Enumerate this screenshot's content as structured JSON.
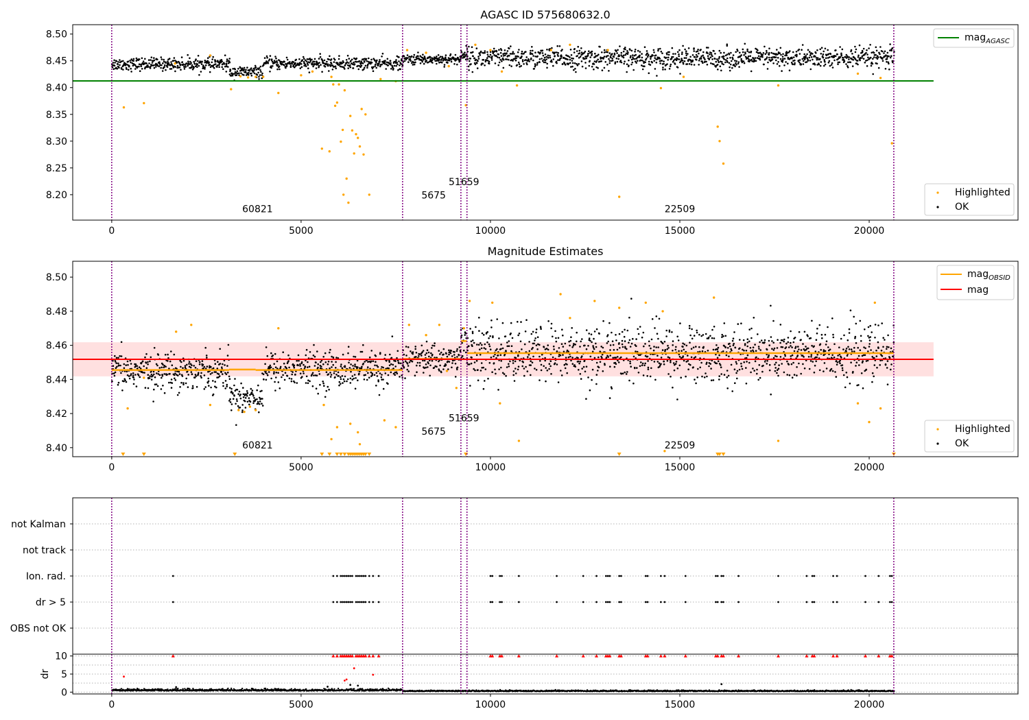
{
  "chart_data": [
    {
      "id": "top",
      "type": "scatter",
      "title": "AGASC ID 575680632.0",
      "xlim": [
        -1030,
        23930
      ],
      "ylim": [
        8.1525,
        8.5175
      ],
      "xticks": [
        0,
        5000,
        10000,
        15000,
        20000
      ],
      "yticks": [
        8.2,
        8.25,
        8.3,
        8.35,
        8.4,
        8.45,
        8.5
      ],
      "legend_lines": {
        "placement": "upper-right",
        "entries": [
          {
            "label": "mag",
            "sub": "AGASC",
            "color": "#008000"
          }
        ]
      },
      "legend_points": {
        "placement": "lower-right",
        "entries": [
          {
            "label": "Highlighted",
            "color": "#ffa500"
          },
          {
            "label": "OK",
            "color": "#000000"
          }
        ]
      },
      "hline": {
        "y": 8.4125,
        "x0": -1030,
        "x1": 21700,
        "color": "#008000"
      },
      "obsid_labels": [
        {
          "text": "60821",
          "x": 3850,
          "y": 8.167
        },
        {
          "text": "5675",
          "x": 8500,
          "y": 8.193
        },
        {
          "text": "51659",
          "x": 9300,
          "y": 8.218
        },
        {
          "text": "22509",
          "x": 15000,
          "y": 8.167
        }
      ],
      "band_model": {
        "segments": [
          {
            "x0": 0,
            "x1": 3100,
            "center": 8.444,
            "spread": 0.013
          },
          {
            "x0": 3100,
            "x1": 4000,
            "center": 8.429,
            "spread": 0.012
          },
          {
            "x0": 4000,
            "x1": 7680,
            "center": 8.445,
            "spread": 0.013
          },
          {
            "x0": 7680,
            "x1": 9220,
            "center": 8.453,
            "spread": 0.011
          },
          {
            "x0": 9220,
            "x1": 9380,
            "center": 8.463,
            "spread": 0.014
          },
          {
            "x0": 9380,
            "x1": 20650,
            "center": 8.455,
            "spread": 0.022
          }
        ]
      },
      "highlighted_points": [
        [
          320,
          8.363
        ],
        [
          850,
          8.371
        ],
        [
          1670,
          8.445
        ],
        [
          2600,
          8.46
        ],
        [
          3150,
          8.397
        ],
        [
          3400,
          8.421
        ],
        [
          3600,
          8.419
        ],
        [
          3800,
          8.42
        ],
        [
          4000,
          8.42
        ],
        [
          4400,
          8.39
        ],
        [
          5000,
          8.423
        ],
        [
          5300,
          8.43
        ],
        [
          5550,
          8.286
        ],
        [
          5750,
          8.281
        ],
        [
          5800,
          8.42
        ],
        [
          5850,
          8.406
        ],
        [
          5900,
          8.366
        ],
        [
          5950,
          8.372
        ],
        [
          6000,
          8.406
        ],
        [
          6050,
          8.299
        ],
        [
          6100,
          8.321
        ],
        [
          6120,
          8.2
        ],
        [
          6150,
          8.395
        ],
        [
          6200,
          8.23
        ],
        [
          6250,
          8.185
        ],
        [
          6300,
          8.347
        ],
        [
          6350,
          8.32
        ],
        [
          6400,
          8.277
        ],
        [
          6450,
          8.313
        ],
        [
          6500,
          8.306
        ],
        [
          6550,
          8.29
        ],
        [
          6600,
          8.36
        ],
        [
          6650,
          8.275
        ],
        [
          6700,
          8.35
        ],
        [
          6800,
          8.2
        ],
        [
          7100,
          8.416
        ],
        [
          7500,
          8.412
        ],
        [
          7800,
          8.47
        ],
        [
          8300,
          8.465
        ],
        [
          8900,
          8.44
        ],
        [
          9350,
          8.367
        ],
        [
          9600,
          8.48
        ],
        [
          10000,
          8.47
        ],
        [
          10300,
          8.43
        ],
        [
          10700,
          8.404
        ],
        [
          11600,
          8.47
        ],
        [
          12100,
          8.48
        ],
        [
          13100,
          8.47
        ],
        [
          13400,
          8.196
        ],
        [
          14500,
          8.399
        ],
        [
          15100,
          8.42
        ],
        [
          16000,
          8.327
        ],
        [
          16050,
          8.3
        ],
        [
          16150,
          8.258
        ],
        [
          17600,
          8.404
        ],
        [
          19700,
          8.426
        ],
        [
          20300,
          8.418
        ],
        [
          20600,
          8.296
        ]
      ]
    },
    {
      "id": "middle",
      "type": "scatter",
      "title": "Magnitude Estimates",
      "xlim": [
        -1030,
        23930
      ],
      "ylim": [
        8.3947,
        8.5093
      ],
      "xticks": [
        0,
        5000,
        10000,
        15000,
        20000
      ],
      "yticks": [
        8.4,
        8.42,
        8.44,
        8.46,
        8.48,
        8.5
      ],
      "legend_lines": {
        "placement": "upper-right",
        "entries": [
          {
            "label": "mag",
            "sub": "OBSID",
            "color": "#ffa500"
          },
          {
            "label": "mag",
            "sub": "",
            "color": "#ff0000"
          }
        ]
      },
      "legend_points": {
        "placement": "lower-right",
        "entries": [
          {
            "label": "Highlighted",
            "color": "#ffa500"
          },
          {
            "label": "OK",
            "color": "#000000"
          }
        ]
      },
      "mag_line": {
        "y": 8.4518,
        "x0": -1030,
        "x1": 21700,
        "color": "#ff0000"
      },
      "mag_band": {
        "y0": 8.4418,
        "y1": 8.4618,
        "color": "#ffd6d6"
      },
      "obsid_segments": [
        {
          "x0": 0,
          "x1": 3100,
          "y": 8.4455
        },
        {
          "x0": 3100,
          "x1": 3800,
          "y": 8.4458
        },
        {
          "x0": 3800,
          "x1": 7680,
          "y": 8.4455
        },
        {
          "x0": 7680,
          "x1": 9220,
          "y": 8.452
        },
        {
          "x0": 9220,
          "x1": 9380,
          "y": 8.4625
        },
        {
          "x0": 9380,
          "x1": 20650,
          "y": 8.4554
        }
      ],
      "obsid_labels": [
        {
          "text": "60821",
          "x": 3850,
          "y": 8.3995
        },
        {
          "text": "5675",
          "x": 8500,
          "y": 8.4075
        },
        {
          "text": "51659",
          "x": 9300,
          "y": 8.4155
        },
        {
          "text": "22509",
          "x": 15000,
          "y": 8.3995
        }
      ],
      "band_model": {
        "segments": [
          {
            "x0": 0,
            "x1": 3100,
            "center": 8.445,
            "spread": 0.012
          },
          {
            "x0": 3100,
            "x1": 4000,
            "center": 8.43,
            "spread": 0.011
          },
          {
            "x0": 4000,
            "x1": 7680,
            "center": 8.446,
            "spread": 0.012
          },
          {
            "x0": 7680,
            "x1": 9220,
            "center": 8.452,
            "spread": 0.01
          },
          {
            "x0": 9220,
            "x1": 9380,
            "center": 8.463,
            "spread": 0.012
          },
          {
            "x0": 9380,
            "x1": 20650,
            "center": 8.455,
            "spread": 0.019
          }
        ]
      },
      "highlighted_points": [
        [
          420,
          8.423
        ],
        [
          850,
          8.441
        ],
        [
          1700,
          8.468
        ],
        [
          2100,
          8.472
        ],
        [
          2600,
          8.425
        ],
        [
          3350,
          8.422
        ],
        [
          3500,
          8.421
        ],
        [
          3650,
          8.424
        ],
        [
          3800,
          8.422
        ],
        [
          4400,
          8.47
        ],
        [
          5600,
          8.425
        ],
        [
          5800,
          8.405
        ],
        [
          5950,
          8.412
        ],
        [
          6300,
          8.414
        ],
        [
          6500,
          8.409
        ],
        [
          6550,
          8.402
        ],
        [
          7200,
          8.416
        ],
        [
          7500,
          8.412
        ],
        [
          7850,
          8.472
        ],
        [
          8300,
          8.466
        ],
        [
          8650,
          8.472
        ],
        [
          8850,
          8.445
        ],
        [
          9100,
          8.435
        ],
        [
          9300,
          8.47
        ],
        [
          9450,
          8.486
        ],
        [
          10050,
          8.485
        ],
        [
          10250,
          8.426
        ],
        [
          10750,
          8.404
        ],
        [
          11850,
          8.49
        ],
        [
          12100,
          8.476
        ],
        [
          12750,
          8.486
        ],
        [
          13400,
          8.482
        ],
        [
          14100,
          8.485
        ],
        [
          14550,
          8.48
        ],
        [
          14600,
          8.398
        ],
        [
          15900,
          8.488
        ],
        [
          17600,
          8.404
        ],
        [
          19700,
          8.426
        ],
        [
          20000,
          8.415
        ],
        [
          20150,
          8.485
        ],
        [
          20300,
          8.423
        ]
      ],
      "lower_limit_markers": [
        300,
        850,
        3250,
        5550,
        5750,
        5950,
        6050,
        6150,
        6250,
        6300,
        6350,
        6400,
        6450,
        6500,
        6550,
        6600,
        6650,
        6700,
        6800,
        9350,
        13400,
        16000,
        16050,
        16150,
        20650
      ]
    },
    {
      "id": "flags",
      "type": "scatter",
      "xlim": [
        -1030,
        23930
      ],
      "ylim": [
        -0.5,
        5.5
      ],
      "categories": [
        "OBS not OK",
        "dr > 5",
        "Ion. rad.",
        "not track",
        "not Kalman"
      ],
      "rows": [
        {
          "label": "OBS not OK",
          "points": []
        },
        {
          "label": "dr > 5",
          "points": [
            1620,
            5850,
            5950,
            6050,
            6100,
            6150,
            6200,
            6250,
            6300,
            6350,
            6450,
            6500,
            6550,
            6600,
            6650,
            6700,
            6800,
            6900,
            7050,
            10000,
            10050,
            10250,
            10300,
            10750,
            11750,
            12450,
            12800,
            13050,
            13100,
            13150,
            13400,
            13450,
            14100,
            14150,
            14500,
            14600,
            15150,
            15950,
            16000,
            16100,
            16150,
            16550,
            17600,
            18350,
            18500,
            18550,
            19050,
            19150,
            19900,
            20250,
            20550,
            20600
          ]
        },
        {
          "label": "Ion. rad.",
          "points": [
            1620,
            5850,
            5950,
            6050,
            6100,
            6150,
            6200,
            6250,
            6300,
            6350,
            6450,
            6500,
            6550,
            6600,
            6650,
            6700,
            6800,
            6900,
            7050,
            10000,
            10050,
            10250,
            10300,
            10750,
            11750,
            12450,
            12800,
            13050,
            13100,
            13150,
            13400,
            13450,
            14100,
            14150,
            14500,
            14600,
            15150,
            15950,
            16000,
            16100,
            16150,
            16550,
            17600,
            18350,
            18500,
            18550,
            19050,
            19150,
            19900,
            20250,
            20550,
            20600
          ]
        },
        {
          "label": "not track",
          "points": []
        },
        {
          "label": "not Kalman",
          "points": []
        }
      ]
    },
    {
      "id": "dr",
      "type": "scatter",
      "ylabel": "dr",
      "xlim": [
        -1030,
        23930
      ],
      "ylim": [
        -0.5,
        10.5
      ],
      "xticks": [
        0,
        5000,
        10000,
        15000,
        20000
      ],
      "yticks": [
        0,
        5,
        10
      ],
      "capped_markers": [
        1620,
        5850,
        5950,
        6050,
        6100,
        6150,
        6200,
        6250,
        6300,
        6350,
        6450,
        6500,
        6550,
        6600,
        6650,
        6700,
        6800,
        6900,
        7050,
        10000,
        10050,
        10250,
        10300,
        10750,
        11750,
        12450,
        12800,
        13050,
        13100,
        13150,
        13400,
        13450,
        14100,
        14150,
        14500,
        14600,
        15150,
        15950,
        16000,
        16100,
        16150,
        16550,
        17600,
        18350,
        18500,
        18550,
        19050,
        19150,
        19900,
        20250,
        20550,
        20600
      ],
      "outlier_points": [
        [
          320,
          4.3
        ],
        [
          6150,
          3.2
        ],
        [
          6200,
          3.5
        ],
        [
          6400,
          6.6
        ],
        [
          6900,
          4.8
        ],
        [
          6300,
          2.0
        ],
        [
          6500,
          1.8
        ],
        [
          16100,
          2.2
        ],
        [
          5700,
          1.5
        ],
        [
          1700,
          1.4
        ]
      ]
    }
  ],
  "obsid_boundaries": [
    0,
    7680,
    9220,
    9380,
    20650
  ],
  "colors": {
    "ok": "#000000",
    "highlighted": "#ffa500",
    "agasc": "#008000",
    "mag": "#ff0000",
    "boundary": "#800080",
    "capped": "#ff0000"
  }
}
